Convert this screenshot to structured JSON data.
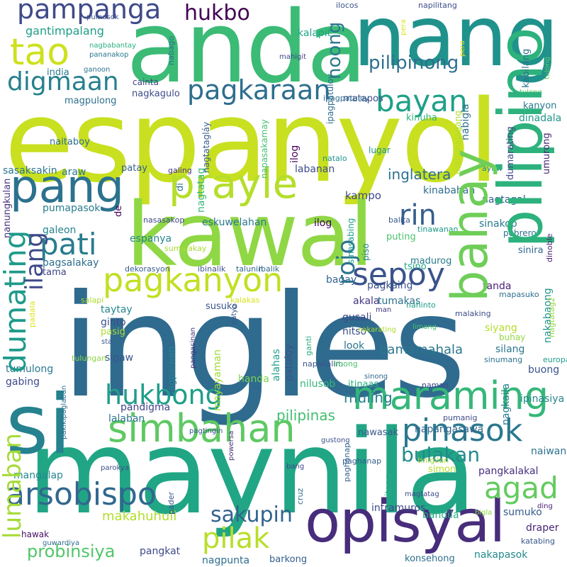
{
  "words": [
    {
      "text": "ingles",
      "color": "#2f6b8e"
    },
    {
      "text": "espanyol",
      "color": "#c8e020"
    },
    {
      "text": "maynila",
      "color": "#21a685"
    },
    {
      "text": "kawal",
      "color": "#8fd744"
    },
    {
      "text": "anda",
      "color": "#3bbb75"
    },
    {
      "text": "nang",
      "color": "#20928c"
    },
    {
      "text": "si",
      "color": "#26828e"
    },
    {
      "text": "opisyal",
      "color": "#472d7b"
    },
    {
      "text": "pilipino",
      "color": "#2db27d"
    },
    {
      "text": "pang",
      "color": "#2c728e"
    },
    {
      "text": "prayle",
      "color": "#b5de2b"
    },
    {
      "text": "bahay",
      "color": "#6ece58"
    },
    {
      "text": "simbahan",
      "color": "#5ec962"
    },
    {
      "text": "maraming",
      "color": "#35b779"
    },
    {
      "text": "pagkanyon",
      "color": "#c2df23"
    },
    {
      "text": "tao",
      "color": "#cde11d"
    },
    {
      "text": "pampanga",
      "color": "#3e4a89"
    },
    {
      "text": "digmaan",
      "color": "#27808e"
    },
    {
      "text": "pagkaraan",
      "color": "#2e6e8e"
    },
    {
      "text": "bayan",
      "color": "#1fa088"
    },
    {
      "text": "arsobispo",
      "color": "#31688e"
    },
    {
      "text": "hukbong",
      "color": "#1f9e89"
    },
    {
      "text": "pinasok",
      "color": "#2a788e"
    },
    {
      "text": "sepoy",
      "color": "#3a538b"
    },
    {
      "text": "rin",
      "color": "#355f8d"
    },
    {
      "text": "pati",
      "color": "#287c8e"
    },
    {
      "text": "dumating",
      "color": "#1f9a8a"
    },
    {
      "text": "ilang",
      "color": "#3e4989"
    },
    {
      "text": "agad",
      "color": "#63cb5f"
    },
    {
      "text": "pilak",
      "color": "#b8de29"
    },
    {
      "text": "sakupin",
      "color": "#33638d"
    },
    {
      "text": "lumaban",
      "color": "#a5db36"
    },
    {
      "text": "rojo",
      "color": "#2c728e"
    },
    {
      "text": "hukbo",
      "color": "#440154"
    },
    {
      "text": "probinsiya",
      "color": "#52c569"
    },
    {
      "text": "bulakan",
      "color": "#238a8d"
    },
    {
      "text": "noong",
      "color": "#2a788e"
    },
    {
      "text": "pilipinong",
      "color": "#2e6f8e"
    },
    {
      "text": "gantimpalang",
      "color": "#1f9f88"
    },
    {
      "text": "inglatera",
      "color": "#2d718e"
    },
    {
      "text": "makahuhuli",
      "color": "#b2dd2d"
    },
    {
      "text": "pilipinas",
      "color": "#42be71"
    },
    {
      "text": "pamamahala",
      "color": "#2a768e"
    },
    {
      "text": "muling",
      "color": "#277f8e"
    },
    {
      "text": "dinadala",
      "color": "#1f968b"
    },
    {
      "text": "pangkalakal",
      "color": "#46307e"
    },
    {
      "text": "intramuros",
      "color": "#404688"
    },
    {
      "text": "konsehong",
      "color": "#2d708e"
    },
    {
      "text": "nakapasok",
      "color": "#23898e"
    },
    {
      "text": "pagkaing",
      "color": "#3b528b"
    },
    {
      "text": "tanda",
      "color": "#482173"
    },
    {
      "text": "sinakop",
      "color": "#29798e"
    },
    {
      "text": "kampo",
      "color": "#3f4788"
    },
    {
      "text": "nagtagal",
      "color": "#365c8d"
    },
    {
      "text": "eskuwelahan",
      "color": "#2a778e"
    },
    {
      "text": "espanya",
      "color": "#24868e"
    },
    {
      "text": "tsino",
      "color": "#22a785"
    },
    {
      "text": "labanan",
      "color": "#3e4c8a"
    },
    {
      "text": "kinabahan",
      "color": "#2e6d8e"
    },
    {
      "text": "pumapasok",
      "color": "#287d8e"
    },
    {
      "text": "sasaksakin",
      "color": "#2c738e"
    },
    {
      "text": "pagsalakay",
      "color": "#2e6f8e"
    },
    {
      "text": "galeon",
      "color": "#25848e"
    },
    {
      "text": "nagkagulo",
      "color": "#3d4d8a"
    },
    {
      "text": "napangasawa",
      "color": "#31668e"
    },
    {
      "text": "nagtatag",
      "color": "#35b779"
    },
    {
      "text": "naitaboy",
      "color": "#2e6f8e"
    },
    {
      "text": "nanungkulan",
      "color": "#46327e"
    },
    {
      "text": "mayayaman",
      "color": "#a0da39"
    },
    {
      "text": "nagpaiwan",
      "color": "#25848e"
    },
    {
      "text": "sigaw",
      "color": "#38588c"
    },
    {
      "text": "handa",
      "color": "#7ad151"
    },
    {
      "text": "alahas",
      "color": "#1fa088"
    },
    {
      "text": "patuloy",
      "color": "#3b528b"
    },
    {
      "text": "nilusob",
      "color": "#35b779"
    },
    {
      "text": "itinaas",
      "color": "#29af7f"
    },
    {
      "text": "ipinasiya",
      "color": "#24868e"
    },
    {
      "text": "nagkaila",
      "color": "#277f8e"
    },
    {
      "text": "naiwan",
      "color": "#2c738e"
    },
    {
      "text": "nawasak",
      "color": "#38598c"
    },
    {
      "text": "tumulong",
      "color": "#2a788e"
    },
    {
      "text": "gabing",
      "color": "#3e4a89"
    },
    {
      "text": "pandigma",
      "color": "#414487"
    },
    {
      "text": "lalaban",
      "color": "#2c728e"
    },
    {
      "text": "mangalap",
      "color": "#23898e"
    },
    {
      "text": "pangkat",
      "color": "#3f4889"
    },
    {
      "text": "nagpunta",
      "color": "#2e6e8e"
    },
    {
      "text": "barkong",
      "color": "#355e8d"
    },
    {
      "text": "bandila",
      "color": "#27ad81"
    },
    {
      "text": "sumuko",
      "color": "#365d8d"
    },
    {
      "text": "draper",
      "color": "#482475"
    },
    {
      "text": "katabing",
      "color": "#39568c"
    },
    {
      "text": "buong",
      "color": "#3a548c"
    },
    {
      "text": "silang",
      "color": "#2b758e"
    },
    {
      "text": "siyang",
      "color": "#b5de2b"
    },
    {
      "text": "nakabaong",
      "color": "#1f958b"
    },
    {
      "text": "sinira",
      "color": "#31678e"
    },
    {
      "text": "madurog",
      "color": "#287c8e"
    },
    {
      "text": "puting",
      "color": "#4ac16d"
    },
    {
      "text": "akala",
      "color": "#453781"
    },
    {
      "text": "tumakas",
      "color": "#2c718e"
    },
    {
      "text": "bagay",
      "color": "#33638d"
    },
    {
      "text": "gusali",
      "color": "#3e4989"
    },
    {
      "text": "nitso",
      "color": "#3c4f8a"
    },
    {
      "text": "look",
      "color": "#2a768e"
    },
    {
      "text": "susuko",
      "color": "#3a548c"
    },
    {
      "text": "taytay",
      "color": "#24878e"
    },
    {
      "text": "ginto",
      "color": "#3d4e8a"
    },
    {
      "text": "pasig",
      "color": "#addc30"
    },
    {
      "text": "tama",
      "color": "#3f4788"
    },
    {
      "text": "de",
      "color": "#440154"
    },
    {
      "text": "ilog",
      "color": "#440154"
    },
    {
      "text": "araw",
      "color": "#2a778e"
    },
    {
      "text": "galing",
      "color": "#46327e"
    },
    {
      "text": "patay",
      "color": "#33638d"
    },
    {
      "text": "di",
      "color": "#2c728e"
    },
    {
      "text": "magpulong",
      "color": "#2d708e"
    },
    {
      "text": "india",
      "color": "#2a788e"
    },
    {
      "text": "cainta",
      "color": "#414487"
    },
    {
      "text": "kalapit",
      "color": "#20a486"
    },
    {
      "text": "kabilang",
      "color": "#2c738e"
    },
    {
      "text": "nabigla",
      "color": "#2d708e"
    },
    {
      "text": "kanyon",
      "color": "#297a8e"
    },
    {
      "text": "pinaligtas",
      "color": "#2ab07f"
    },
    {
      "text": "dumarating",
      "color": "#3f4889"
    },
    {
      "text": "matapos",
      "color": "#3e4a89"
    },
    {
      "text": "kinuha",
      "color": "#2db27d"
    },
    {
      "text": "mahahalagang",
      "color": "#b2dd2d"
    },
    {
      "text": "napasakamay",
      "color": "#44bf70"
    },
    {
      "text": "nagtatagláy",
      "color": "#365d8d"
    },
    {
      "text": "ipagpatuloy",
      "color": "#2e6d8e"
    },
    {
      "text": "lugar",
      "color": "#1f958b"
    },
    {
      "text": "natalo",
      "color": "#1f968b"
    },
    {
      "text": "balita",
      "color": "#38588c"
    },
    {
      "text": "piso",
      "color": "#26828e"
    },
    {
      "text": "sinasabing",
      "color": "#1fa088"
    },
    {
      "text": "tinawanan",
      "color": "#1f9a8a"
    },
    {
      "text": "pebrero",
      "color": "#2c718e"
    },
    {
      "text": "dinoble",
      "color": "#481f70"
    },
    {
      "text": "mapasuko",
      "color": "#2e6e8e"
    },
    {
      "text": "umurong",
      "color": "#482878"
    },
    {
      "text": "ayaw",
      "color": "#26828e"
    },
    {
      "text": "sumalakay",
      "color": "#a8db34"
    },
    {
      "text": "nasasakop",
      "color": "#3f4788"
    },
    {
      "text": "padala",
      "color": "#dde318"
    },
    {
      "text": "dekorasyon",
      "color": "#365c8d"
    },
    {
      "text": "ibinalik",
      "color": "#3b528b"
    },
    {
      "text": "talunin",
      "color": "#31678e"
    },
    {
      "text": "ibalik",
      "color": "#31688e"
    },
    {
      "text": "kalakas",
      "color": "#d8e219"
    },
    {
      "text": "salapi",
      "color": "#addc30"
    },
    {
      "text": "patyo",
      "color": "#3a548c"
    },
    {
      "text": "man",
      "color": "#46337f"
    },
    {
      "text": "nahinto",
      "color": "#1f9e89"
    },
    {
      "text": "malaking",
      "color": "#3c4f8a"
    },
    {
      "text": "ganti",
      "color": "#2ab07f"
    },
    {
      "text": "nagtatag2",
      "color": "#8fd744"
    },
    {
      "text": "nakarating",
      "color": "#addc30"
    },
    {
      "text": "limang",
      "color": "#45bf70"
    },
    {
      "text": "buhay",
      "color": "#93d741"
    },
    {
      "text": "sta",
      "color": "#375a8c"
    },
    {
      "text": "tulungan",
      "color": "#8bd646"
    },
    {
      "text": "pangasinan",
      "color": "#46307e"
    },
    {
      "text": "napailalim",
      "color": "#3b528b"
    },
    {
      "text": "libong",
      "color": "#4ac16d"
    },
    {
      "text": "sinumang",
      "color": "#2c738e"
    },
    {
      "text": "europa",
      "color": "#1f9a8a"
    },
    {
      "text": "sinong",
      "color": "#31688e"
    },
    {
      "text": "naman",
      "color": "#3e4989"
    },
    {
      "text": "pakikipaglaban",
      "color": "#2e6e8e"
    },
    {
      "text": "pagtingin",
      "color": "#3b518b"
    },
    {
      "text": "pumanig",
      "color": "#3e4a89"
    },
    {
      "text": "gustong",
      "color": "#3b528b"
    },
    {
      "text": "powersa",
      "color": "#46307e"
    },
    {
      "text": "bang",
      "color": "#3f4788"
    },
    {
      "text": "cruz",
      "color": "#2d708e"
    },
    {
      "text": "paghanap",
      "color": "#355e8d"
    },
    {
      "text": "tinigilan",
      "color": "#a0da39"
    },
    {
      "text": "simon",
      "color": "#b5de2b"
    },
    {
      "text": "parokya",
      "color": "#3c4f8a"
    },
    {
      "text": "pader",
      "color": "#3a548c"
    },
    {
      "text": "nangalap",
      "color": "#471164"
    },
    {
      "text": "magtatag",
      "color": "#3f4889"
    },
    {
      "text": "itong",
      "color": "#25ab82"
    },
    {
      "text": "bigla",
      "color": "#8bd646"
    },
    {
      "text": "ding",
      "color": "#482475"
    },
    {
      "text": "hawak",
      "color": "#471063"
    },
    {
      "text": "guwardiya",
      "color": "#2e6e8e"
    },
    {
      "text": "ilocos",
      "color": "#3b528b"
    },
    {
      "text": "napilitang",
      "color": "#3e4c8a"
    },
    {
      "text": "pera",
      "color": "#dde318"
    },
    {
      "text": "tulong",
      "color": "#5ec962"
    },
    {
      "text": "pumasok",
      "color": "#3b518b"
    },
    {
      "text": "nagbabantay",
      "color": "#2ab07f"
    },
    {
      "text": "pananakop",
      "color": "#2a788e"
    },
    {
      "text": "ganoon",
      "color": "#2c728e"
    },
    {
      "text": "nabago",
      "color": "#2e6e8e"
    },
    {
      "text": "mahigit",
      "color": "#3e4a89"
    },
    {
      "text": "nagbigay",
      "color": "#8fd744"
    },
    {
      "text": "salaping",
      "color": "#39568c"
    },
    {
      "text": "pumayag",
      "color": "#3c4f8a"
    },
    {
      "text": "ilang2",
      "color": "#3e4989"
    }
  ]
}
